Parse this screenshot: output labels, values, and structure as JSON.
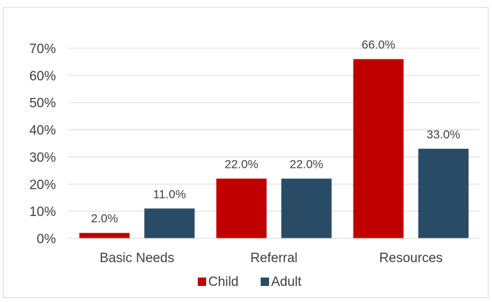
{
  "chart_data": {
    "type": "bar",
    "categories": [
      "Basic Needs",
      "Referral",
      "Resources"
    ],
    "series": [
      {
        "name": "Child",
        "values": [
          2.0,
          22.0,
          66.0
        ],
        "color": "#c00000"
      },
      {
        "name": "Adult",
        "values": [
          11.0,
          22.0,
          33.0
        ],
        "color": "#2a4b66"
      }
    ],
    "data_labels": [
      [
        "2.0%",
        "22.0%",
        "66.0%"
      ],
      [
        "11.0%",
        "22.0%",
        "33.0%"
      ]
    ],
    "title": "",
    "xlabel": "",
    "ylabel": "",
    "ylim": [
      0,
      70
    ],
    "yticks": [
      "0%",
      "10%",
      "20%",
      "30%",
      "40%",
      "50%",
      "60%",
      "70%"
    ],
    "grid": true,
    "legend": {
      "position": "bottom",
      "entries": [
        "Child",
        "Adult"
      ]
    }
  }
}
